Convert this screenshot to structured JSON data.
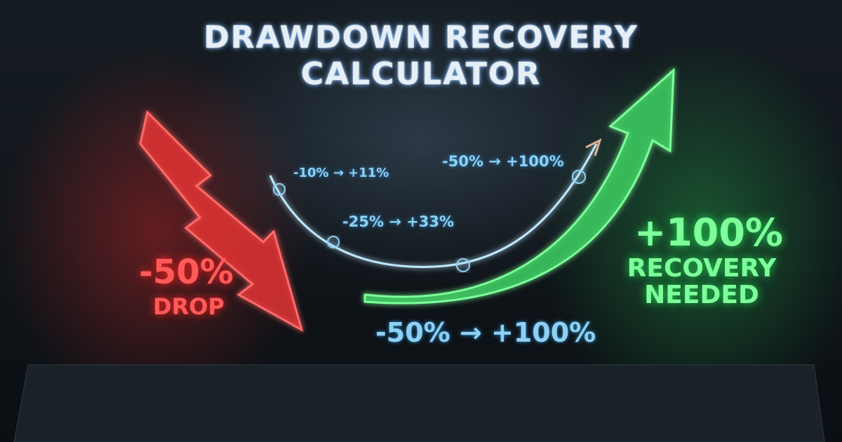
{
  "title": {
    "line1": "DRAWDOWN RECOVERY",
    "line2": "CALCULATOR"
  },
  "curve_labels": [
    "-10% → +11%",
    "-25% → +33%",
    "-50% → +100%"
  ],
  "drop": {
    "value": "-50%",
    "label": "DROP"
  },
  "recovery": {
    "value": "+100%",
    "line1": "RECOVERY",
    "line2": "NEEDED"
  },
  "summary": "-50% → +100%",
  "colors": {
    "drop": "#ff4a4a",
    "recovery": "#4cf07a",
    "curve": "#8fd0f2"
  }
}
